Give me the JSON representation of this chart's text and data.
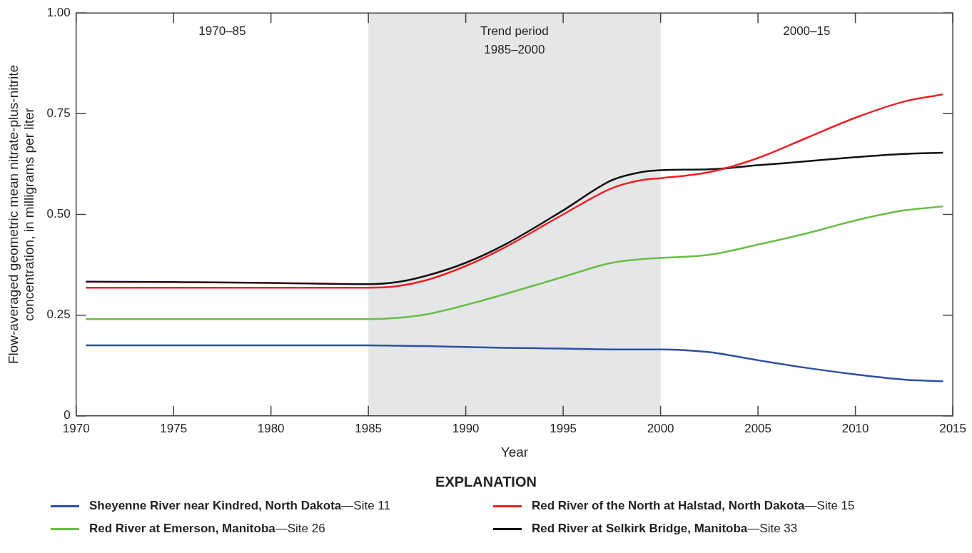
{
  "chart_data": {
    "type": "line",
    "xlabel": "Year",
    "ylabel": "Flow-averaged geometric mean nitrate-plus-nitrite concentration, in milligrams per liter",
    "legend_title": "EXPLANATION",
    "legend": "bottom",
    "grid": false,
    "marker": "none",
    "line_style": "solid",
    "xlim": [
      1970,
      2015
    ],
    "xticks": [
      1970,
      1975,
      1980,
      1985,
      1990,
      1995,
      2000,
      2005,
      2010,
      2015
    ],
    "ylim": [
      0,
      1
    ],
    "yticks": [
      0,
      0.25,
      {
        "value": 0.5,
        "label": "0.50"
      },
      0.75,
      {
        "value": 1,
        "label": "1.00"
      }
    ],
    "bands": [
      {
        "axis": "x",
        "from": 1985,
        "to": 2000,
        "label": "1985–2000",
        "color": "#e5e6e8"
      }
    ],
    "annotations": [
      "1970–85",
      "Trend period",
      "2000–15"
    ],
    "x": [
      1970.5,
      1975,
      1980,
      1985,
      1986.5,
      1988,
      1990,
      1992,
      1995,
      1997.5,
      1999,
      2000,
      2002.5,
      2005,
      2007.5,
      2010,
      2012.5,
      2014.5
    ],
    "series": [
      {
        "name": "Sheyenne River near Kindred, North Dakota—Site 11",
        "color": "#2e4fa3",
        "values": [
          0.175,
          0.175,
          0.175,
          0.175,
          0.174,
          0.173,
          0.171,
          0.169,
          0.167,
          0.165,
          0.165,
          0.165,
          0.158,
          0.138,
          0.119,
          0.103,
          0.09,
          0.086
        ]
      },
      {
        "name": "Red River of the North at Halstad, North Dakota—Site 15",
        "color": "#ee2024",
        "values": [
          0.318,
          0.318,
          0.318,
          0.318,
          0.322,
          0.337,
          0.372,
          0.418,
          0.5,
          0.565,
          0.585,
          0.59,
          0.605,
          0.64,
          0.69,
          0.74,
          0.78,
          0.798
        ]
      },
      {
        "name": "Red River at Emerson, Manitoba—Site 26",
        "color": "#6bbd45",
        "values": [
          0.24,
          0.24,
          0.24,
          0.24,
          0.243,
          0.252,
          0.275,
          0.302,
          0.345,
          0.38,
          0.389,
          0.392,
          0.4,
          0.425,
          0.453,
          0.485,
          0.51,
          0.52
        ]
      },
      {
        "name": "Red River at Selkirk Bridge, Manitoba—Site 33",
        "color": "#111111",
        "values": [
          0.333,
          0.332,
          0.33,
          0.327,
          0.332,
          0.348,
          0.38,
          0.425,
          0.51,
          0.585,
          0.605,
          0.61,
          0.612,
          0.622,
          0.632,
          0.642,
          0.65,
          0.653
        ]
      }
    ]
  }
}
